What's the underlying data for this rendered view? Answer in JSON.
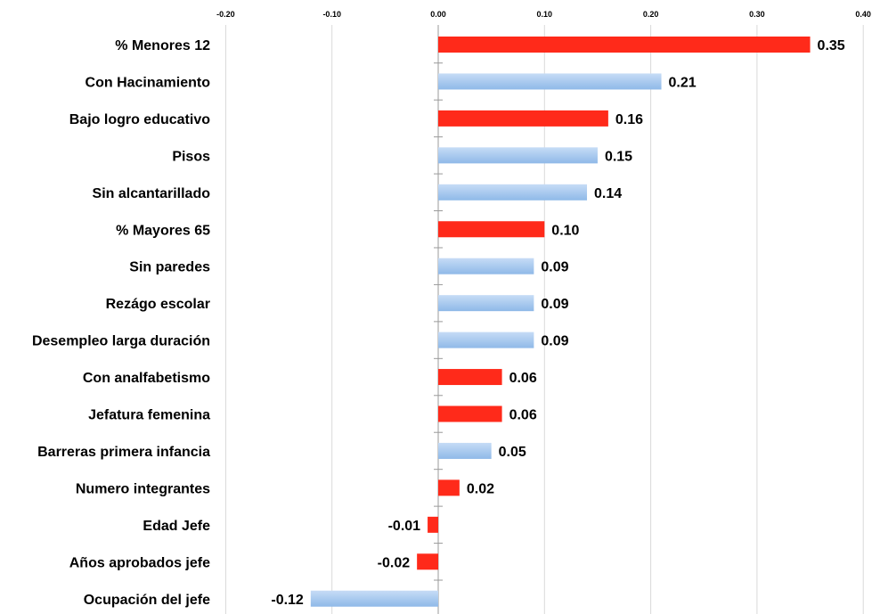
{
  "chart_data": {
    "type": "bar",
    "orientation": "horizontal",
    "title": "",
    "xlabel": "",
    "ylabel": "",
    "xlim": [
      -0.2,
      0.4
    ],
    "x_ticks": [
      "-0.20",
      "-0.10",
      "0.00",
      "0.10",
      "0.20",
      "0.30",
      "0.40"
    ],
    "grid": true,
    "legend": "none",
    "categories": [
      "% Menores 12",
      "Con Hacinamiento",
      "Bajo logro educativo",
      "Pisos",
      "Sin alcantarillado",
      "% Mayores 65",
      "Sin paredes",
      "Rezágo escolar",
      "Desempleo larga duración",
      "Con analfabetismo",
      "Jefatura femenina",
      "Barreras primera infancia",
      "Numero integrantes",
      "Edad Jefe",
      "Años aprobados jefe",
      "Ocupación del jefe"
    ],
    "values": [
      0.35,
      0.21,
      0.16,
      0.15,
      0.14,
      0.1,
      0.09,
      0.09,
      0.09,
      0.06,
      0.06,
      0.05,
      0.02,
      -0.01,
      -0.02,
      -0.12
    ],
    "value_labels": [
      "0.35",
      "0.21",
      "0.16",
      "0.15",
      "0.14",
      "0.10",
      "0.09",
      "0.09",
      "0.09",
      "0.06",
      "0.06",
      "0.05",
      "0.02",
      "-0.01",
      "-0.02",
      "-0.12"
    ],
    "bar_colors": [
      "red",
      "blue",
      "red",
      "blue",
      "blue",
      "red",
      "blue",
      "blue",
      "blue",
      "red",
      "red",
      "blue",
      "red",
      "red",
      "red",
      "blue"
    ],
    "colors": {
      "red": "#ff2a1a",
      "blue": "#8fb9e8",
      "blue_light": "#c6dcf6",
      "grid": "#d9d9d9",
      "axis": "#9a9a9a"
    }
  }
}
